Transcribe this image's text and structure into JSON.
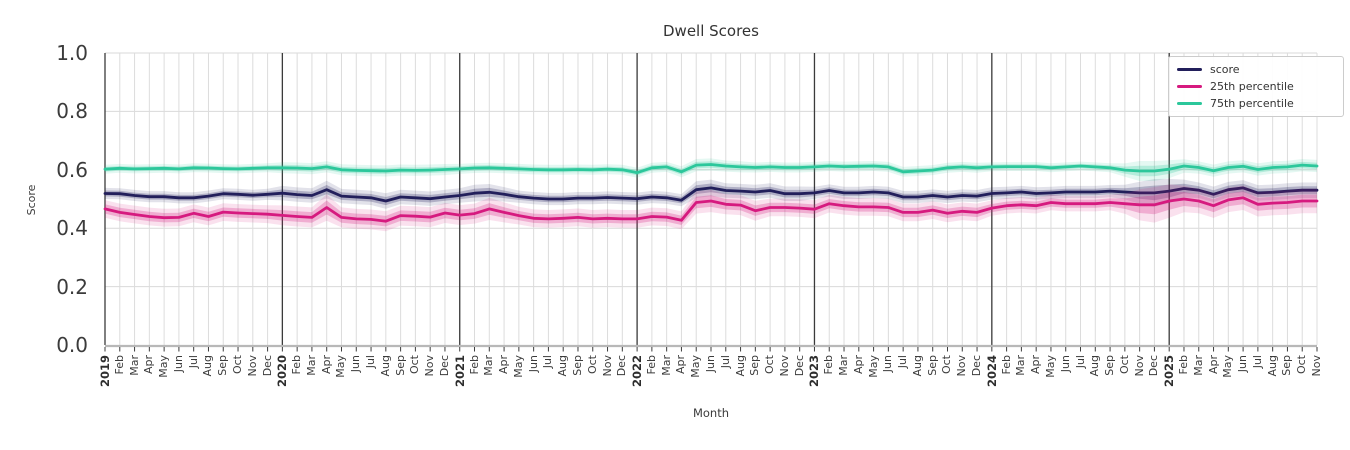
{
  "title": "Dwell Scores",
  "axes": {
    "ylabel": "Score",
    "xlabel": "Month",
    "yticks": [
      "0.0",
      "0.2",
      "0.4",
      "0.6",
      "0.8",
      "1.0"
    ]
  },
  "colors": {
    "score": "#221F5B",
    "p25": "#D61A7F",
    "p75": "#2CC79B",
    "grid": "#d9d9d9",
    "year_line": "#3b3b3b",
    "spine": "#3b3b3b",
    "baseline": "#b8b8b8",
    "text": "#3b3b3b"
  },
  "chart_data": {
    "type": "line",
    "title": "Dwell Scores",
    "xlabel": "Month",
    "ylabel": "Score",
    "ylim": [
      0.0,
      1.0
    ],
    "yticks": [
      0.0,
      0.2,
      0.4,
      0.6,
      0.8,
      1.0
    ],
    "grid": true,
    "legend_position": "upper right",
    "x": [
      "2019",
      "Feb",
      "Mar",
      "Apr",
      "May",
      "Jun",
      "Jul",
      "Aug",
      "Sep",
      "Oct",
      "Nov",
      "Dec",
      "2020",
      "Feb",
      "Mar",
      "Apr",
      "May",
      "Jun",
      "Jul",
      "Aug",
      "Sep",
      "Oct",
      "Nov",
      "Dec",
      "2021",
      "Feb",
      "Mar",
      "Apr",
      "May",
      "Jun",
      "Jul",
      "Aug",
      "Sep",
      "Oct",
      "Nov",
      "Dec",
      "2022",
      "Feb",
      "Mar",
      "Apr",
      "May",
      "Jun",
      "Jul",
      "Aug",
      "Sep",
      "Oct",
      "Nov",
      "Dec",
      "2023",
      "Feb",
      "Mar",
      "Apr",
      "May",
      "Jun",
      "Jul",
      "Aug",
      "Sep",
      "Oct",
      "Nov",
      "Dec",
      "2024",
      "Feb",
      "Mar",
      "Apr",
      "May",
      "Jun",
      "Jul",
      "Aug",
      "Sep",
      "Oct",
      "Nov",
      "Dec",
      "2025",
      "Feb",
      "Mar",
      "Apr",
      "May",
      "Jun",
      "Jul",
      "Aug",
      "Sep",
      "Oct",
      "Nov"
    ],
    "series": [
      {
        "name": "score",
        "color": "#221F5B",
        "values": [
          0.519,
          0.518,
          0.512,
          0.508,
          0.508,
          0.504,
          0.504,
          0.51,
          0.518,
          0.516,
          0.513,
          0.516,
          0.52,
          0.515,
          0.512,
          0.532,
          0.51,
          0.507,
          0.504,
          0.493,
          0.507,
          0.504,
          0.501,
          0.507,
          0.512,
          0.52,
          0.523,
          0.516,
          0.508,
          0.503,
          0.5,
          0.5,
          0.503,
          0.503,
          0.505,
          0.503,
          0.501,
          0.507,
          0.504,
          0.496,
          0.532,
          0.538,
          0.529,
          0.527,
          0.524,
          0.529,
          0.518,
          0.518,
          0.521,
          0.529,
          0.521,
          0.521,
          0.524,
          0.521,
          0.507,
          0.507,
          0.512,
          0.507,
          0.512,
          0.51,
          0.519,
          0.521,
          0.524,
          0.519,
          0.521,
          0.524,
          0.524,
          0.524,
          0.527,
          0.524,
          0.521,
          0.521,
          0.527,
          0.536,
          0.53,
          0.516,
          0.532,
          0.538,
          0.521,
          0.523,
          0.527,
          0.53,
          0.53
        ],
        "band_halfwidth": [
          0.01,
          0.01,
          0.01,
          0.01,
          0.01,
          0.01,
          0.01,
          0.01,
          0.01,
          0.01,
          0.01,
          0.01,
          0.013,
          0.013,
          0.013,
          0.016,
          0.013,
          0.013,
          0.013,
          0.014,
          0.013,
          0.013,
          0.013,
          0.013,
          0.013,
          0.015,
          0.015,
          0.013,
          0.011,
          0.011,
          0.011,
          0.011,
          0.011,
          0.011,
          0.011,
          0.011,
          0.011,
          0.011,
          0.011,
          0.011,
          0.015,
          0.015,
          0.013,
          0.013,
          0.013,
          0.013,
          0.013,
          0.013,
          0.011,
          0.011,
          0.011,
          0.011,
          0.011,
          0.011,
          0.011,
          0.011,
          0.011,
          0.011,
          0.011,
          0.011,
          0.011,
          0.011,
          0.011,
          0.011,
          0.011,
          0.011,
          0.011,
          0.011,
          0.011,
          0.013,
          0.02,
          0.025,
          0.022,
          0.016,
          0.014,
          0.014,
          0.014,
          0.014,
          0.014,
          0.014,
          0.014,
          0.014,
          0.014
        ]
      },
      {
        "name": "25th percentile",
        "color": "#D61A7F",
        "values": [
          0.466,
          0.454,
          0.447,
          0.44,
          0.436,
          0.437,
          0.451,
          0.44,
          0.455,
          0.452,
          0.45,
          0.448,
          0.444,
          0.44,
          0.437,
          0.471,
          0.437,
          0.432,
          0.43,
          0.424,
          0.443,
          0.441,
          0.438,
          0.452,
          0.445,
          0.45,
          0.466,
          0.454,
          0.443,
          0.434,
          0.432,
          0.434,
          0.437,
          0.432,
          0.434,
          0.432,
          0.432,
          0.44,
          0.438,
          0.427,
          0.488,
          0.493,
          0.482,
          0.479,
          0.46,
          0.471,
          0.471,
          0.469,
          0.465,
          0.484,
          0.477,
          0.473,
          0.473,
          0.471,
          0.454,
          0.454,
          0.462,
          0.451,
          0.458,
          0.454,
          0.469,
          0.477,
          0.48,
          0.477,
          0.488,
          0.484,
          0.484,
          0.484,
          0.488,
          0.484,
          0.48,
          0.48,
          0.493,
          0.5,
          0.493,
          0.477,
          0.497,
          0.504,
          0.482,
          0.486,
          0.488,
          0.493,
          0.493
        ],
        "band_halfwidth": [
          0.016,
          0.016,
          0.016,
          0.016,
          0.016,
          0.016,
          0.016,
          0.016,
          0.016,
          0.016,
          0.016,
          0.016,
          0.018,
          0.018,
          0.018,
          0.024,
          0.018,
          0.018,
          0.018,
          0.018,
          0.018,
          0.018,
          0.018,
          0.018,
          0.018,
          0.018,
          0.02,
          0.018,
          0.016,
          0.016,
          0.016,
          0.016,
          0.016,
          0.016,
          0.016,
          0.016,
          0.016,
          0.016,
          0.016,
          0.016,
          0.02,
          0.02,
          0.018,
          0.018,
          0.018,
          0.016,
          0.016,
          0.016,
          0.016,
          0.016,
          0.016,
          0.016,
          0.016,
          0.016,
          0.016,
          0.016,
          0.016,
          0.016,
          0.016,
          0.016,
          0.014,
          0.014,
          0.014,
          0.014,
          0.014,
          0.014,
          0.014,
          0.014,
          0.014,
          0.018,
          0.028,
          0.032,
          0.03,
          0.024,
          0.022,
          0.022,
          0.022,
          0.022,
          0.022,
          0.022,
          0.022,
          0.022,
          0.022
        ]
      },
      {
        "name": "75th percentile",
        "color": "#2CC79B",
        "values": [
          0.602,
          0.605,
          0.603,
          0.604,
          0.605,
          0.603,
          0.607,
          0.606,
          0.604,
          0.603,
          0.605,
          0.607,
          0.607,
          0.606,
          0.604,
          0.61,
          0.6,
          0.598,
          0.597,
          0.596,
          0.599,
          0.598,
          0.599,
          0.601,
          0.603,
          0.606,
          0.607,
          0.605,
          0.603,
          0.601,
          0.6,
          0.6,
          0.601,
          0.6,
          0.602,
          0.6,
          0.59,
          0.607,
          0.61,
          0.593,
          0.616,
          0.618,
          0.613,
          0.61,
          0.608,
          0.61,
          0.608,
          0.608,
          0.61,
          0.613,
          0.611,
          0.612,
          0.613,
          0.61,
          0.593,
          0.596,
          0.599,
          0.607,
          0.61,
          0.607,
          0.61,
          0.611,
          0.611,
          0.611,
          0.607,
          0.61,
          0.613,
          0.61,
          0.607,
          0.599,
          0.596,
          0.596,
          0.602,
          0.613,
          0.608,
          0.597,
          0.608,
          0.612,
          0.601,
          0.608,
          0.61,
          0.616,
          0.613
        ],
        "band_halfwidth": [
          0.008,
          0.008,
          0.008,
          0.008,
          0.008,
          0.008,
          0.008,
          0.008,
          0.008,
          0.008,
          0.008,
          0.008,
          0.01,
          0.01,
          0.01,
          0.01,
          0.01,
          0.01,
          0.01,
          0.01,
          0.01,
          0.01,
          0.01,
          0.01,
          0.009,
          0.009,
          0.009,
          0.009,
          0.009,
          0.009,
          0.009,
          0.009,
          0.009,
          0.009,
          0.009,
          0.009,
          0.009,
          0.009,
          0.009,
          0.01,
          0.011,
          0.011,
          0.01,
          0.01,
          0.009,
          0.009,
          0.009,
          0.009,
          0.009,
          0.009,
          0.009,
          0.009,
          0.009,
          0.009,
          0.009,
          0.009,
          0.009,
          0.009,
          0.009,
          0.009,
          0.008,
          0.008,
          0.008,
          0.008,
          0.008,
          0.008,
          0.008,
          0.008,
          0.008,
          0.012,
          0.018,
          0.018,
          0.016,
          0.012,
          0.011,
          0.011,
          0.011,
          0.011,
          0.011,
          0.011,
          0.011,
          0.011,
          0.011
        ]
      }
    ]
  }
}
